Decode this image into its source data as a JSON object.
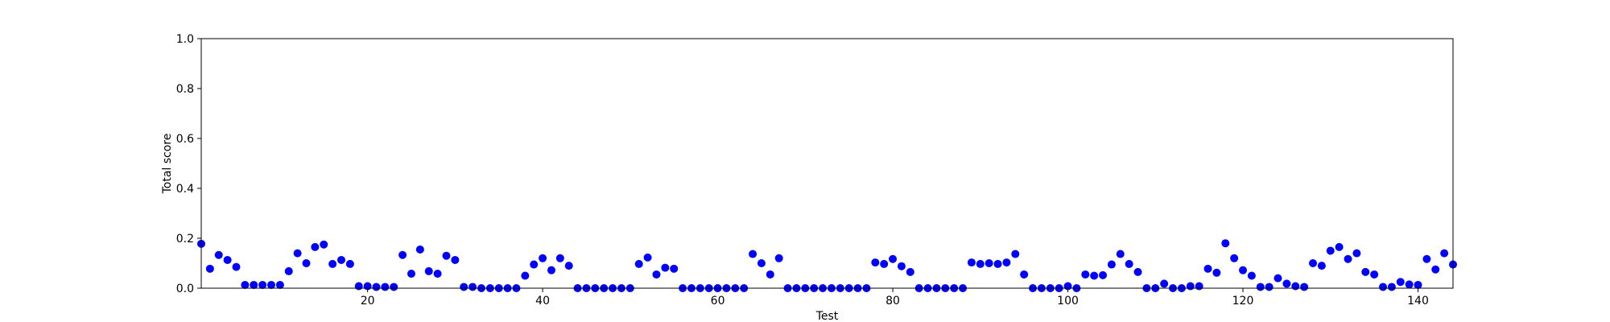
{
  "chart_data": {
    "type": "scatter",
    "xlabel": "Test",
    "ylabel": "Total score",
    "xlim": [
      1,
      144
    ],
    "ylim": [
      0.0,
      1.0
    ],
    "xticks": [
      20,
      40,
      60,
      80,
      100,
      120,
      140
    ],
    "yticks": [
      "0.0",
      "0.2",
      "0.4",
      "0.6",
      "0.8",
      "1.0"
    ],
    "grid": false,
    "legend": "none",
    "marker_color": "#0000ff",
    "x": [
      1,
      2,
      3,
      4,
      5,
      6,
      7,
      8,
      9,
      10,
      11,
      12,
      13,
      14,
      15,
      16,
      17,
      18,
      19,
      20,
      21,
      22,
      23,
      24,
      25,
      26,
      27,
      28,
      29,
      30,
      31,
      32,
      33,
      34,
      35,
      36,
      37,
      38,
      39,
      40,
      41,
      42,
      43,
      44,
      45,
      46,
      47,
      48,
      49,
      50,
      51,
      52,
      53,
      54,
      55,
      56,
      57,
      58,
      59,
      60,
      61,
      62,
      63,
      64,
      65,
      66,
      67,
      68,
      69,
      70,
      71,
      72,
      73,
      74,
      75,
      76,
      77,
      78,
      79,
      80,
      81,
      82,
      83,
      84,
      85,
      86,
      87,
      88,
      89,
      90,
      91,
      92,
      93,
      94,
      95,
      96,
      97,
      98,
      99,
      100,
      101,
      102,
      103,
      104,
      105,
      106,
      107,
      108,
      109,
      110,
      111,
      112,
      113,
      114,
      115,
      116,
      117,
      118,
      119,
      120,
      121,
      122,
      123,
      124,
      125,
      126,
      127,
      128,
      129,
      130,
      131,
      132,
      133,
      134,
      135,
      136,
      137,
      138,
      139,
      140,
      141,
      142,
      143,
      144
    ],
    "y": [
      0.178,
      0.078,
      0.133,
      0.113,
      0.085,
      0.013,
      0.013,
      0.013,
      0.013,
      0.013,
      0.068,
      0.14,
      0.1,
      0.165,
      0.175,
      0.097,
      0.113,
      0.097,
      0.008,
      0.008,
      0.005,
      0.005,
      0.005,
      0.133,
      0.058,
      0.155,
      0.068,
      0.058,
      0.13,
      0.113,
      0.005,
      0.005,
      0.0,
      0.0,
      0.0,
      0.0,
      0.0,
      0.05,
      0.095,
      0.12,
      0.072,
      0.12,
      0.09,
      0.0,
      0.0,
      0.0,
      0.0,
      0.0,
      0.0,
      0.0,
      0.097,
      0.123,
      0.055,
      0.082,
      0.078,
      0.0,
      0.0,
      0.0,
      0.0,
      0.0,
      0.0,
      0.0,
      0.0,
      0.137,
      0.1,
      0.055,
      0.12,
      0.0,
      0.0,
      0.0,
      0.0,
      0.0,
      0.0,
      0.0,
      0.0,
      0.0,
      0.0,
      0.103,
      0.097,
      0.117,
      0.088,
      0.065,
      0.0,
      0.0,
      0.0,
      0.0,
      0.0,
      0.0,
      0.103,
      0.097,
      0.1,
      0.097,
      0.103,
      0.137,
      0.055,
      0.0,
      0.0,
      0.0,
      0.0,
      0.008,
      0.0,
      0.055,
      0.05,
      0.052,
      0.095,
      0.137,
      0.097,
      0.065,
      0.0,
      0.0,
      0.018,
      0.0,
      0.0,
      0.008,
      0.008,
      0.078,
      0.062,
      0.18,
      0.12,
      0.072,
      0.05,
      0.005,
      0.005,
      0.04,
      0.018,
      0.008,
      0.005,
      0.1,
      0.09,
      0.15,
      0.165,
      0.117,
      0.14,
      0.065,
      0.055,
      0.005,
      0.005,
      0.025,
      0.015,
      0.013,
      0.117,
      0.075,
      0.14,
      0.095
    ]
  }
}
